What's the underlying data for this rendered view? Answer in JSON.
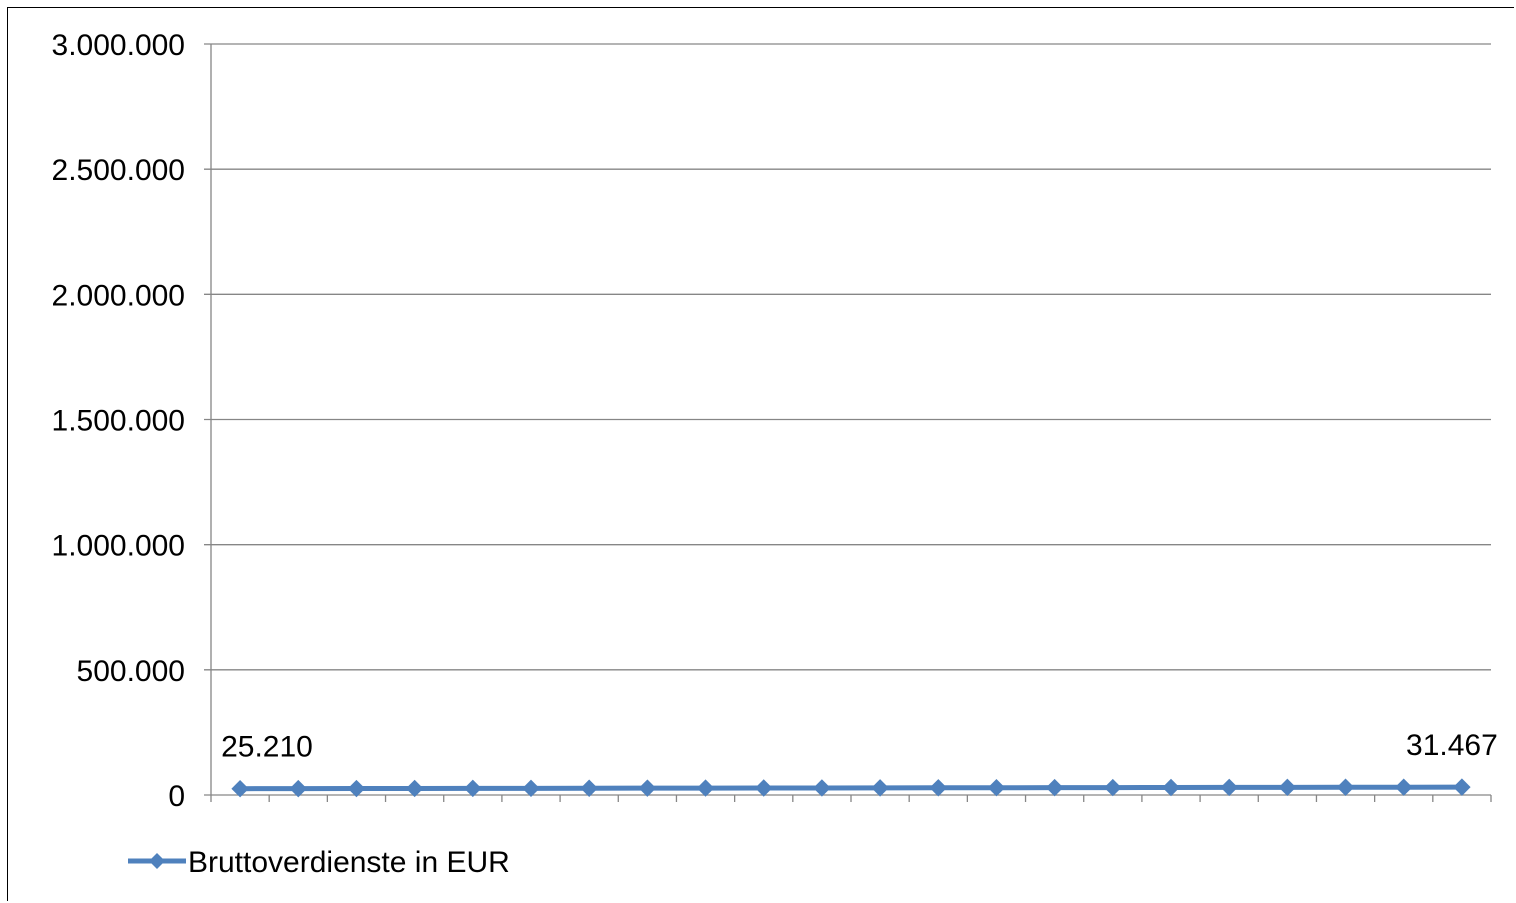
{
  "chart_data": {
    "type": "line",
    "title": "",
    "xlabel": "",
    "ylabel": "",
    "ylim": [
      0,
      3000000
    ],
    "yticks": [
      0,
      500000,
      1000000,
      1500000,
      2000000,
      2500000,
      3000000
    ],
    "ytick_labels": [
      "0",
      "500.000",
      "1.000.000",
      "1.500.000",
      "2.000.000",
      "2.500.000",
      "3.000.000"
    ],
    "grid": "horizontal",
    "legend": "bottom-left",
    "x": [
      1,
      2,
      3,
      4,
      5,
      6,
      7,
      8,
      9,
      10,
      11,
      12,
      13,
      14,
      15,
      16,
      17,
      18,
      19,
      20,
      21,
      22
    ],
    "series": [
      {
        "name": "Bruttoverdienste in EUR",
        "color": "#4F81BD",
        "values": [
          25210,
          25500,
          25800,
          26100,
          26400,
          26700,
          27000,
          27300,
          27600,
          27900,
          28200,
          28500,
          28800,
          29100,
          29400,
          29700,
          30000,
          30300,
          30600,
          30900,
          31200,
          31467
        ]
      }
    ],
    "data_labels": [
      {
        "index": 0,
        "text": "25.210"
      },
      {
        "index": 21,
        "text": "31.467"
      }
    ]
  }
}
